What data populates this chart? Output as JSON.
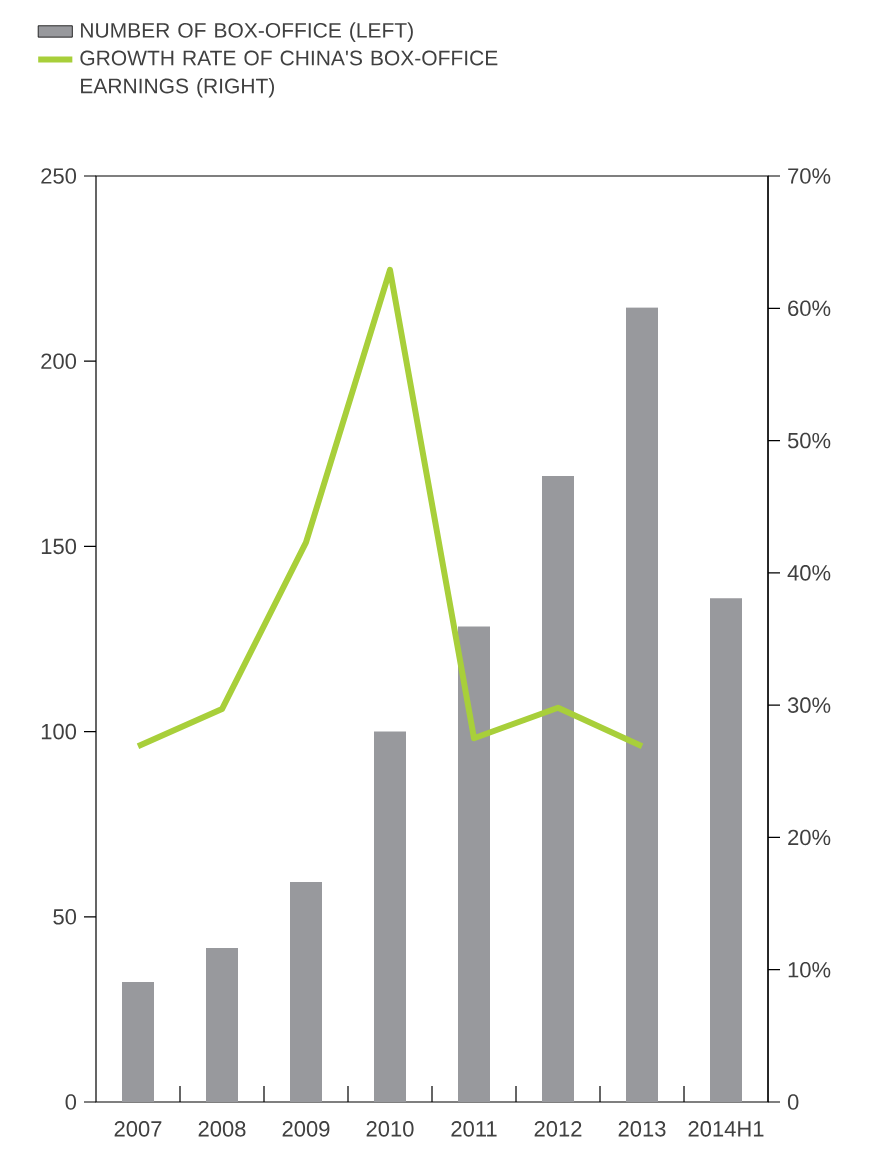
{
  "chart_data": {
    "type": "bar",
    "categories": [
      "2007",
      "2008",
      "2009",
      "2010",
      "2011",
      "2012",
      "2013",
      "2014H1"
    ],
    "series": [
      {
        "name": "NUMBER OF BOX-OFFICE (LEFT)",
        "color": "#98999d",
        "values": [
          32.4,
          41.6,
          59.4,
          100,
          128.4,
          169,
          214.5,
          136
        ]
      },
      {
        "name": "GROWTH RATE OF CHINA'S BOX-OFFICE EARNINGS (RIGHT)",
        "type": "line",
        "axis": "y2",
        "color": "#a8cf3a",
        "values": [
          26.9,
          29.7,
          42.3,
          62.9,
          27.5,
          29.8,
          26.9,
          null
        ]
      }
    ],
    "ylim": [
      0,
      250
    ],
    "yticks": [
      0,
      50,
      100,
      150,
      200,
      250
    ],
    "y2lim": [
      0,
      70
    ],
    "y2ticks": [
      {
        "value": 0,
        "label": "0"
      },
      {
        "value": 10,
        "label": "10%"
      },
      {
        "value": 20,
        "label": "20%"
      },
      {
        "value": 30,
        "label": "30%"
      },
      {
        "value": 40,
        "label": "40%"
      },
      {
        "value": 50,
        "label": "50%"
      },
      {
        "value": 60,
        "label": "60%"
      },
      {
        "value": 70,
        "label": "70%"
      }
    ],
    "legend": "top left"
  }
}
